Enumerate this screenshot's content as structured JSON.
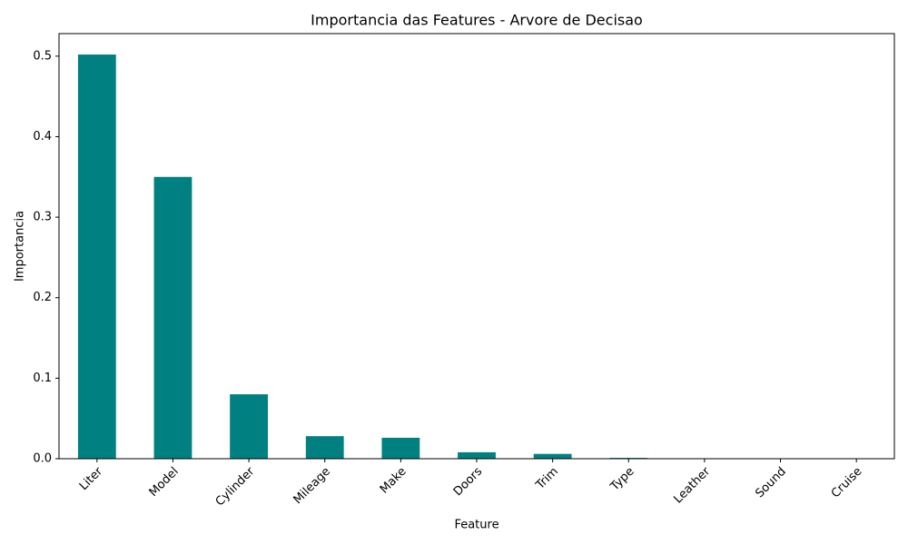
{
  "chart_data": {
    "type": "bar",
    "title": "Importancia das Features - Arvore de Decisao",
    "x_label": "Feature",
    "y_label": "Importancia",
    "categories": [
      "Liter",
      "Model",
      "Cylinder",
      "Mileage",
      "Make",
      "Doors",
      "Trim",
      "Type",
      "Leather",
      "Sound",
      "Cruise"
    ],
    "values": [
      0.502,
      0.35,
      0.08,
      0.028,
      0.026,
      0.008,
      0.006,
      0.001,
      0,
      0,
      0
    ],
    "color": "#008080",
    "ylim": [
      0,
      0.528
    ],
    "yticks": [
      {
        "value": 0,
        "label": "0.0"
      },
      0.1,
      0.2,
      0.3,
      0.4,
      0.5
    ],
    "grid": false
  }
}
